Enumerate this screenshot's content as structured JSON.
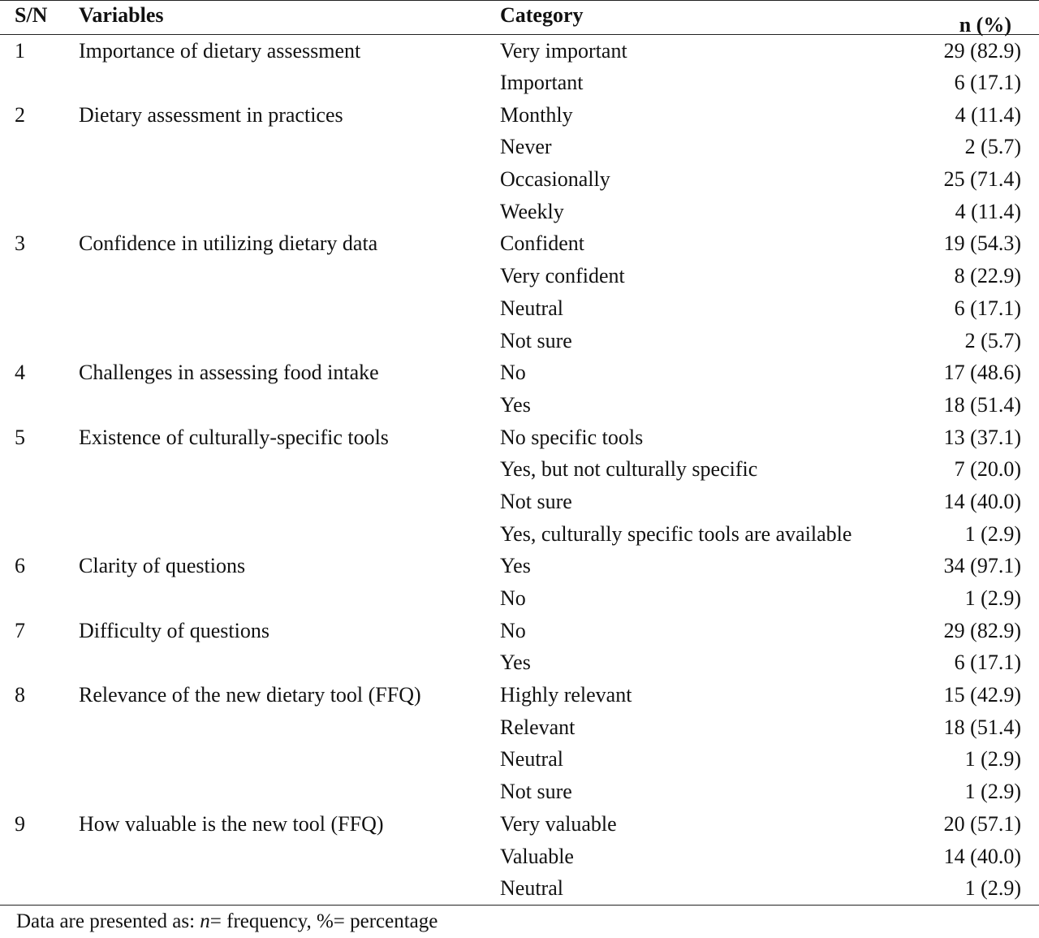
{
  "table": {
    "headers": {
      "sn": "S/N",
      "variables": "Variables",
      "category": "Category",
      "n": "n (%)"
    },
    "rows": [
      {
        "sn": "1",
        "variable": "Importance of dietary assessment",
        "category": "Very important",
        "n": "29 (82.9)"
      },
      {
        "sn": "",
        "variable": "",
        "category": "Important",
        "n": "6 (17.1)"
      },
      {
        "sn": "2",
        "variable": "Dietary assessment in practices",
        "category": "Monthly",
        "n": "4 (11.4)"
      },
      {
        "sn": "",
        "variable": "",
        "category": "Never",
        "n": "2 (5.7)"
      },
      {
        "sn": "",
        "variable": "",
        "category": "Occasionally",
        "n": "25 (71.4)"
      },
      {
        "sn": "",
        "variable": "",
        "category": "Weekly",
        "n": "4 (11.4)"
      },
      {
        "sn": "3",
        "variable": "Confidence in utilizing dietary data",
        "category": "Confident",
        "n": "19 (54.3)"
      },
      {
        "sn": "",
        "variable": "",
        "category": "Very confident",
        "n": "8 (22.9)"
      },
      {
        "sn": "",
        "variable": "",
        "category": "Neutral",
        "n": "6 (17.1)"
      },
      {
        "sn": "",
        "variable": "",
        "category": "Not sure",
        "n": "2 (5.7)"
      },
      {
        "sn": "4",
        "variable": "Challenges in assessing food intake",
        "category": "No",
        "n": "17 (48.6)"
      },
      {
        "sn": "",
        "variable": "",
        "category": "Yes",
        "n": "18 (51.4)"
      },
      {
        "sn": "5",
        "variable": "Existence of culturally-specific tools",
        "category": "No specific tools",
        "n": "13 (37.1)"
      },
      {
        "sn": "",
        "variable": "",
        "category": "Yes, but not culturally specific",
        "n": "7 (20.0)"
      },
      {
        "sn": "",
        "variable": "",
        "category": "Not sure",
        "n": "14 (40.0)"
      },
      {
        "sn": "",
        "variable": "",
        "category": "Yes, culturally specific tools are available",
        "n": "1 (2.9)"
      },
      {
        "sn": "6",
        "variable": "Clarity of questions",
        "category": "Yes",
        "n": "34 (97.1)"
      },
      {
        "sn": "",
        "variable": "",
        "category": "No",
        "n": "1 (2.9)"
      },
      {
        "sn": "7",
        "variable": "Difficulty of questions",
        "category": "No",
        "n": "29 (82.9)"
      },
      {
        "sn": "",
        "variable": "",
        "category": "Yes",
        "n": "6 (17.1)"
      },
      {
        "sn": "8",
        "variable": "Relevance of the new dietary tool (FFQ)",
        "category": "Highly relevant",
        "n": "15 (42.9)"
      },
      {
        "sn": "",
        "variable": "",
        "category": "Relevant",
        "n": "18 (51.4)"
      },
      {
        "sn": "",
        "variable": "",
        "category": "Neutral",
        "n": "1 (2.9)"
      },
      {
        "sn": "",
        "variable": "",
        "category": "Not sure",
        "n": "1 (2.9)"
      },
      {
        "sn": "9",
        "variable": "How valuable is the new tool (FFQ)",
        "category": "Very valuable",
        "n": "20 (57.1)"
      },
      {
        "sn": "",
        "variable": "",
        "category": "Valuable",
        "n": "14 (40.0)"
      },
      {
        "sn": "",
        "variable": "",
        "category": "Neutral",
        "n": "1 (2.9)"
      }
    ]
  },
  "footnote": {
    "prefix": "Data are presented as: ",
    "n_symbol": "n",
    "rest": "= frequency, %= percentage"
  }
}
